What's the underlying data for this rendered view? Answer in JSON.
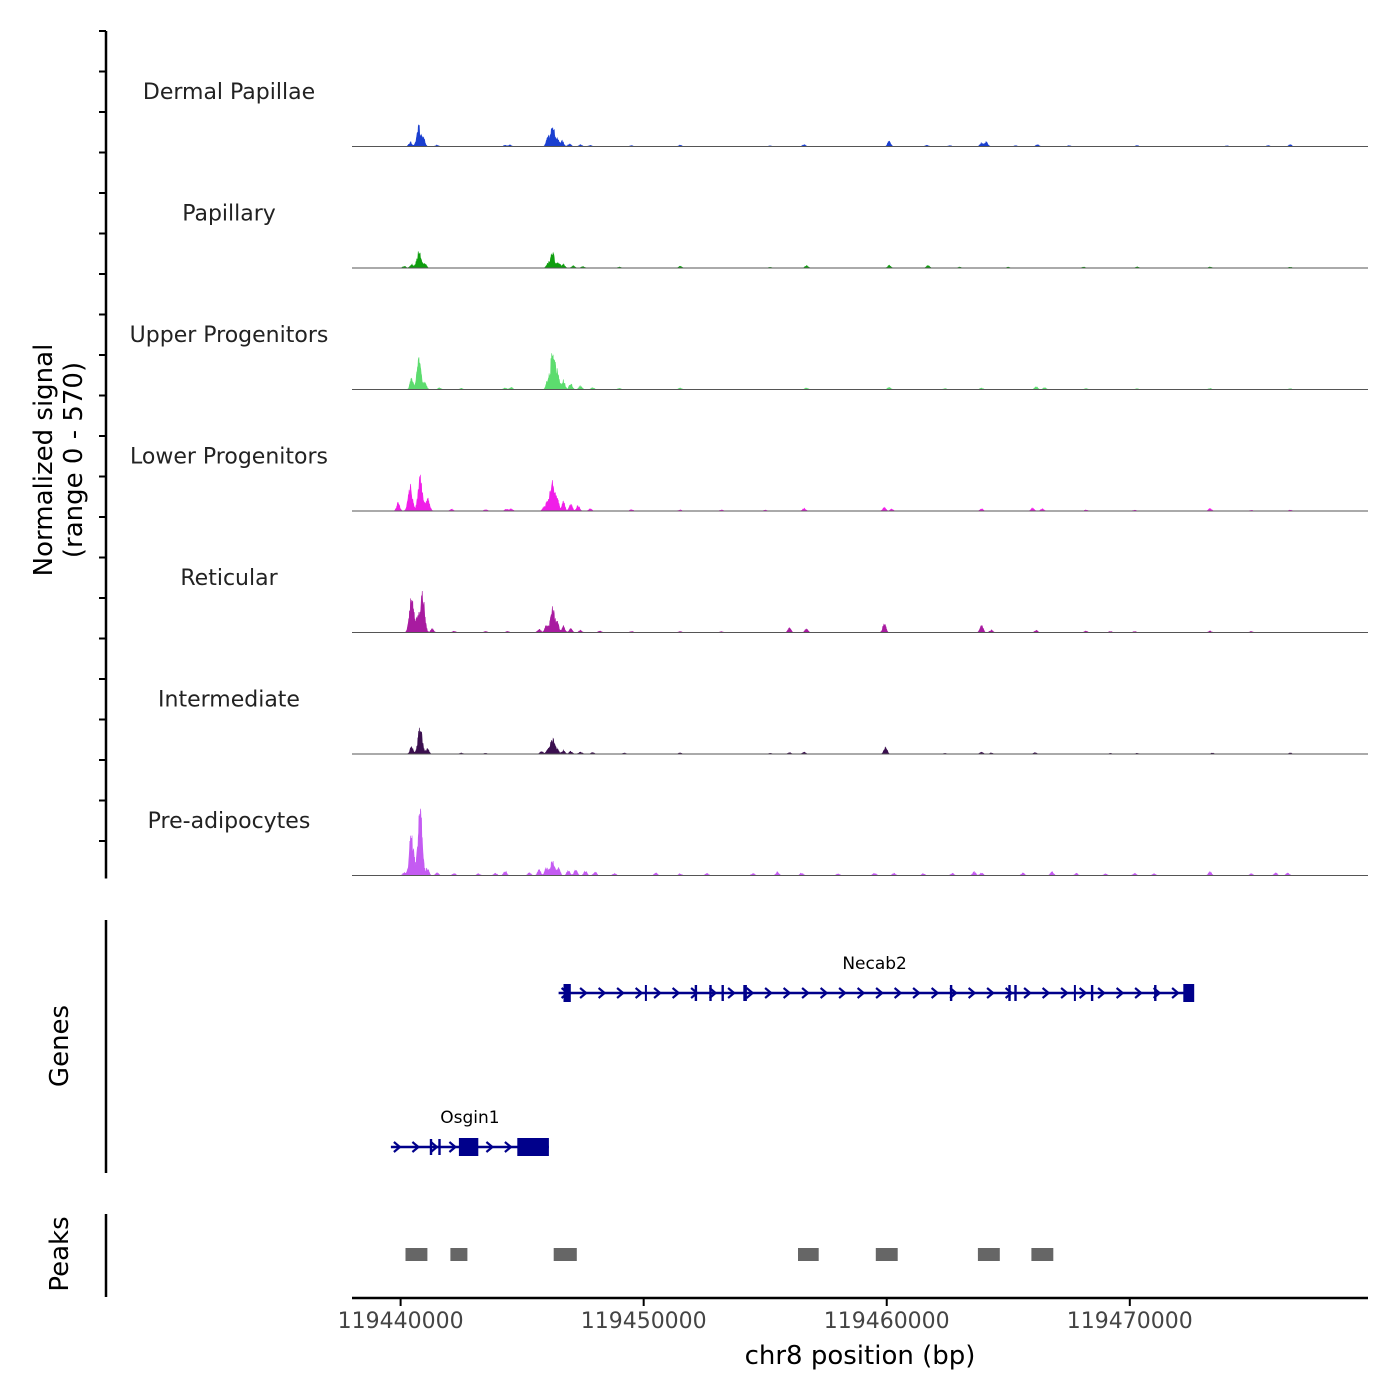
{
  "colors": {
    "gene": "#00008B",
    "peak": "#666666",
    "axis": "#000000",
    "baseline": "#555555",
    "label": "#222222"
  },
  "chart_data": {
    "type": "area",
    "title": "",
    "xlabel": "chr8 position (bp)",
    "ylabel_line1": "Normalized signal",
    "ylabel_line2": "(range 0 - 570)",
    "ylim": [
      0,
      570
    ],
    "xlim": [
      119438000,
      119479800
    ],
    "x_ticks": [
      119440000,
      119450000,
      119460000,
      119470000
    ],
    "x_tick_labels": [
      "119440000",
      "119450000",
      "119460000",
      "119470000"
    ],
    "tracks": [
      {
        "name": "Dermal Papillae",
        "color": "#1A3FD0",
        "peaks": [
          [
            119440750,
            110
          ],
          [
            119440400,
            25
          ],
          [
            119440950,
            40
          ],
          [
            119441500,
            8
          ],
          [
            119444300,
            6
          ],
          [
            119444500,
            8
          ],
          [
            119446050,
            45
          ],
          [
            119446250,
            115
          ],
          [
            119446450,
            45
          ],
          [
            119446650,
            30
          ],
          [
            119446950,
            15
          ],
          [
            119447400,
            10
          ],
          [
            119447800,
            6
          ],
          [
            119449500,
            5
          ],
          [
            119451500,
            8
          ],
          [
            119455200,
            4
          ],
          [
            119456600,
            10
          ],
          [
            119460100,
            30
          ],
          [
            119461650,
            8
          ],
          [
            119462600,
            5
          ],
          [
            119463900,
            20
          ],
          [
            119464100,
            25
          ],
          [
            119465300,
            5
          ],
          [
            119466200,
            10
          ],
          [
            119467500,
            5
          ],
          [
            119470300,
            5
          ],
          [
            119474000,
            4
          ],
          [
            119475700,
            5
          ],
          [
            119476600,
            10
          ]
        ]
      },
      {
        "name": "Papillary",
        "color": "#0F9E0F",
        "peaks": [
          [
            119440750,
            95
          ],
          [
            119440450,
            20
          ],
          [
            119441000,
            25
          ],
          [
            119440150,
            10
          ],
          [
            119446050,
            20
          ],
          [
            119446250,
            85
          ],
          [
            119446500,
            30
          ],
          [
            119446700,
            20
          ],
          [
            119447100,
            12
          ],
          [
            119447500,
            8
          ],
          [
            119449000,
            5
          ],
          [
            119451500,
            10
          ],
          [
            119455200,
            4
          ],
          [
            119456700,
            14
          ],
          [
            119460100,
            14
          ],
          [
            119461700,
            14
          ],
          [
            119463000,
            5
          ],
          [
            119465000,
            5
          ],
          [
            119468100,
            5
          ],
          [
            119470300,
            6
          ],
          [
            119473300,
            6
          ],
          [
            119476600,
            5
          ]
        ]
      },
      {
        "name": "Upper Progenitors",
        "color": "#5CDC6E",
        "peaks": [
          [
            119440750,
            175
          ],
          [
            119440450,
            60
          ],
          [
            119441000,
            45
          ],
          [
            119441600,
            10
          ],
          [
            119442500,
            6
          ],
          [
            119444300,
            8
          ],
          [
            119444550,
            12
          ],
          [
            119446050,
            55
          ],
          [
            119446250,
            210
          ],
          [
            119446450,
            90
          ],
          [
            119446700,
            50
          ],
          [
            119447000,
            35
          ],
          [
            119447400,
            20
          ],
          [
            119447900,
            10
          ],
          [
            119449000,
            6
          ],
          [
            119451500,
            8
          ],
          [
            119456700,
            10
          ],
          [
            119460100,
            12
          ],
          [
            119462400,
            5
          ],
          [
            119463900,
            8
          ],
          [
            119466150,
            16
          ],
          [
            119466500,
            10
          ],
          [
            119468200,
            5
          ],
          [
            119470300,
            5
          ],
          [
            119473300,
            6
          ],
          [
            119476600,
            5
          ]
        ]
      },
      {
        "name": "Lower Progenitors",
        "color": "#F01EE8",
        "peaks": [
          [
            119439900,
            45
          ],
          [
            119440400,
            140
          ],
          [
            119440800,
            190
          ],
          [
            119441100,
            70
          ],
          [
            119442100,
            10
          ],
          [
            119443500,
            8
          ],
          [
            119444350,
            10
          ],
          [
            119444550,
            12
          ],
          [
            119445900,
            20
          ],
          [
            119446050,
            55
          ],
          [
            119446250,
            180
          ],
          [
            119446450,
            60
          ],
          [
            119446700,
            50
          ],
          [
            119447000,
            40
          ],
          [
            119447300,
            30
          ],
          [
            119447800,
            12
          ],
          [
            119449500,
            8
          ],
          [
            119451500,
            6
          ],
          [
            119453200,
            6
          ],
          [
            119455000,
            5
          ],
          [
            119456600,
            15
          ],
          [
            119459900,
            20
          ],
          [
            119460200,
            10
          ],
          [
            119463900,
            12
          ],
          [
            119466000,
            16
          ],
          [
            119466400,
            12
          ],
          [
            119468200,
            6
          ],
          [
            119470200,
            5
          ],
          [
            119473300,
            14
          ],
          [
            119475000,
            4
          ],
          [
            119476600,
            5
          ]
        ]
      },
      {
        "name": "Reticular",
        "color": "#A81BA0",
        "peaks": [
          [
            119440450,
            200
          ],
          [
            119440900,
            205
          ],
          [
            119440700,
            80
          ],
          [
            119441300,
            20
          ],
          [
            119442200,
            8
          ],
          [
            119443500,
            6
          ],
          [
            119444400,
            6
          ],
          [
            119445700,
            20
          ],
          [
            119446000,
            40
          ],
          [
            119446250,
            140
          ],
          [
            119446450,
            50
          ],
          [
            119446700,
            35
          ],
          [
            119447000,
            20
          ],
          [
            119447400,
            12
          ],
          [
            119448200,
            8
          ],
          [
            119449500,
            6
          ],
          [
            119451500,
            6
          ],
          [
            119453200,
            5
          ],
          [
            119456000,
            24
          ],
          [
            119456700,
            20
          ],
          [
            119459900,
            55
          ],
          [
            119463900,
            42
          ],
          [
            119464300,
            15
          ],
          [
            119466150,
            12
          ],
          [
            119468200,
            8
          ],
          [
            119469200,
            6
          ],
          [
            119470200,
            6
          ],
          [
            119473300,
            8
          ],
          [
            119475000,
            6
          ]
        ]
      },
      {
        "name": "Intermediate",
        "color": "#3B0F4F",
        "peaks": [
          [
            119440450,
            40
          ],
          [
            119440800,
            150
          ],
          [
            119441100,
            30
          ],
          [
            119442500,
            5
          ],
          [
            119443500,
            4
          ],
          [
            119445800,
            15
          ],
          [
            119446050,
            20
          ],
          [
            119446250,
            85
          ],
          [
            119446450,
            25
          ],
          [
            119446700,
            20
          ],
          [
            119447000,
            15
          ],
          [
            119447400,
            12
          ],
          [
            119447900,
            8
          ],
          [
            119449200,
            6
          ],
          [
            119451500,
            6
          ],
          [
            119455200,
            4
          ],
          [
            119456000,
            8
          ],
          [
            119456600,
            10
          ],
          [
            119459950,
            40
          ],
          [
            119462400,
            4
          ],
          [
            119463900,
            10
          ],
          [
            119464300,
            6
          ],
          [
            119466100,
            8
          ],
          [
            119469200,
            4
          ],
          [
            119470300,
            4
          ],
          [
            119473400,
            5
          ],
          [
            119476600,
            6
          ]
        ]
      },
      {
        "name": "Pre-adipocytes",
        "color": "#C45BF2",
        "peaks": [
          [
            119440150,
            15
          ],
          [
            119440450,
            245
          ],
          [
            119440800,
            385
          ],
          [
            119441100,
            40
          ],
          [
            119441500,
            15
          ],
          [
            119442200,
            12
          ],
          [
            119443200,
            10
          ],
          [
            119443900,
            12
          ],
          [
            119444300,
            25
          ],
          [
            119445300,
            15
          ],
          [
            119445700,
            35
          ],
          [
            119446000,
            45
          ],
          [
            119446250,
            90
          ],
          [
            119446500,
            40
          ],
          [
            119446900,
            30
          ],
          [
            119447200,
            35
          ],
          [
            119447600,
            25
          ],
          [
            119448000,
            20
          ],
          [
            119448800,
            12
          ],
          [
            119450500,
            15
          ],
          [
            119451500,
            10
          ],
          [
            119452600,
            12
          ],
          [
            119454500,
            12
          ],
          [
            119455500,
            20
          ],
          [
            119456500,
            15
          ],
          [
            119458000,
            10
          ],
          [
            119459500,
            15
          ],
          [
            119460300,
            12
          ],
          [
            119461500,
            10
          ],
          [
            119462700,
            12
          ],
          [
            119463600,
            22
          ],
          [
            119463900,
            15
          ],
          [
            119465600,
            15
          ],
          [
            119466800,
            20
          ],
          [
            119467800,
            12
          ],
          [
            119469000,
            10
          ],
          [
            119470200,
            14
          ],
          [
            119471000,
            10
          ],
          [
            119473300,
            20
          ],
          [
            119475000,
            10
          ],
          [
            119476000,
            15
          ],
          [
            119476500,
            14
          ]
        ]
      }
    ],
    "genes": [
      {
        "name": "Necab2",
        "start": 119446500,
        "end": 119472500,
        "strand": "+",
        "row": 0,
        "exons": [
          [
            119446700,
            119447000
          ],
          [
            119450050,
            119450100
          ],
          [
            119452100,
            119452200
          ],
          [
            119452700,
            119452800
          ],
          [
            119453200,
            119453300
          ],
          [
            119454100,
            119454250
          ],
          [
            119462600,
            119462700
          ],
          [
            119465000,
            119465100
          ],
          [
            119465250,
            119465350
          ],
          [
            119467700,
            119467750
          ],
          [
            119468400,
            119468500
          ],
          [
            119471000,
            119471100
          ],
          [
            119472200,
            119472650
          ]
        ]
      },
      {
        "name": "Osgin1",
        "start": 119439600,
        "end": 119446100,
        "strand": "+",
        "row": 1,
        "exons": [
          [
            119441200,
            119441300
          ],
          [
            119441550,
            119441650
          ],
          [
            119442400,
            119443200
          ],
          [
            119444800,
            119446100
          ]
        ]
      }
    ],
    "peaks_track": [
      [
        119440200,
        119441100
      ],
      [
        119442050,
        119442750
      ],
      [
        119446300,
        119447250
      ],
      [
        119456350,
        119457200
      ],
      [
        119459550,
        119460450
      ],
      [
        119463750,
        119464650
      ],
      [
        119465950,
        119466850
      ]
    ],
    "panel_labels": {
      "genes": "Genes",
      "peaks": "Peaks"
    }
  }
}
